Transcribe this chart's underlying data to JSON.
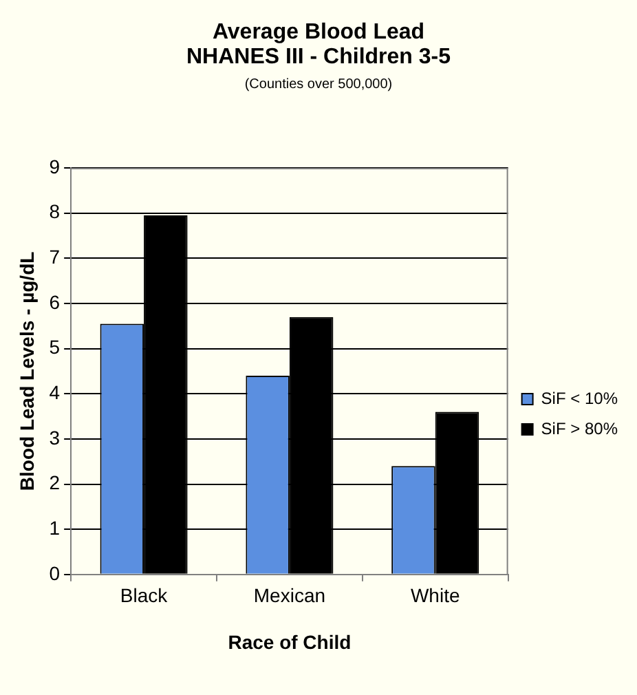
{
  "chart_data": {
    "type": "bar",
    "title": "Average Blood Lead",
    "subtitle": "NHANES III - Children 3-5",
    "annotations": [
      "(Counties over 500,000)"
    ],
    "xlabel": "Race of Child",
    "ylabel": "Blood Lead Levels - µg/dL",
    "categories": [
      "Black",
      "Mexican",
      "White"
    ],
    "series": [
      {
        "name": "SiF < 10%",
        "color": "#5b8fe0",
        "values": [
          5.55,
          4.4,
          2.4
        ]
      },
      {
        "name": "SiF > 80%",
        "color": "#000000",
        "values": [
          7.95,
          5.7,
          3.6
        ]
      }
    ],
    "ylim": [
      0,
      9
    ],
    "yticks": [
      0,
      1,
      2,
      3,
      4,
      5,
      6,
      7,
      8,
      9
    ],
    "grid": "y",
    "legend": "right"
  }
}
